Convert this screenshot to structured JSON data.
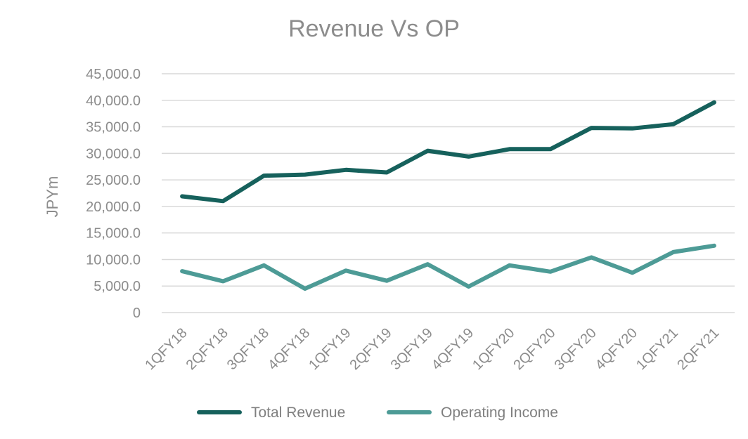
{
  "chart_data": {
    "type": "line",
    "title": "Revenue Vs OP",
    "xlabel": "",
    "ylabel": "JPYm",
    "ylim": [
      0,
      45000
    ],
    "y_ticks": [
      "0",
      "5,000.0",
      "10,000.0",
      "15,000.0",
      "20,000.0",
      "25,000.0",
      "30,000.0",
      "35,000.0",
      "40,000.0",
      "45,000.0"
    ],
    "y_tick_values": [
      0,
      5000,
      10000,
      15000,
      20000,
      25000,
      30000,
      35000,
      40000,
      45000
    ],
    "categories": [
      "1QFY18",
      "2QFY18",
      "3QFY18",
      "4QFY18",
      "1QFY19",
      "2QFY19",
      "3QFY19",
      "4QFY19",
      "1QFY20",
      "2QFY20",
      "3QFY20",
      "4QFY20",
      "1QFY21",
      "2QFY21"
    ],
    "series": [
      {
        "name": "Total Revenue",
        "color": "#16615c",
        "values": [
          21900,
          21000,
          25800,
          26000,
          26900,
          26400,
          30500,
          29400,
          30800,
          30800,
          34800,
          34700,
          35500,
          39600
        ]
      },
      {
        "name": "Operating Income",
        "color": "#4d9b96",
        "values": [
          7800,
          5900,
          8900,
          4500,
          7900,
          6000,
          9100,
          4900,
          8900,
          7700,
          10400,
          7500,
          11400,
          12600
        ]
      }
    ],
    "grid": true,
    "legend_position": "bottom"
  }
}
